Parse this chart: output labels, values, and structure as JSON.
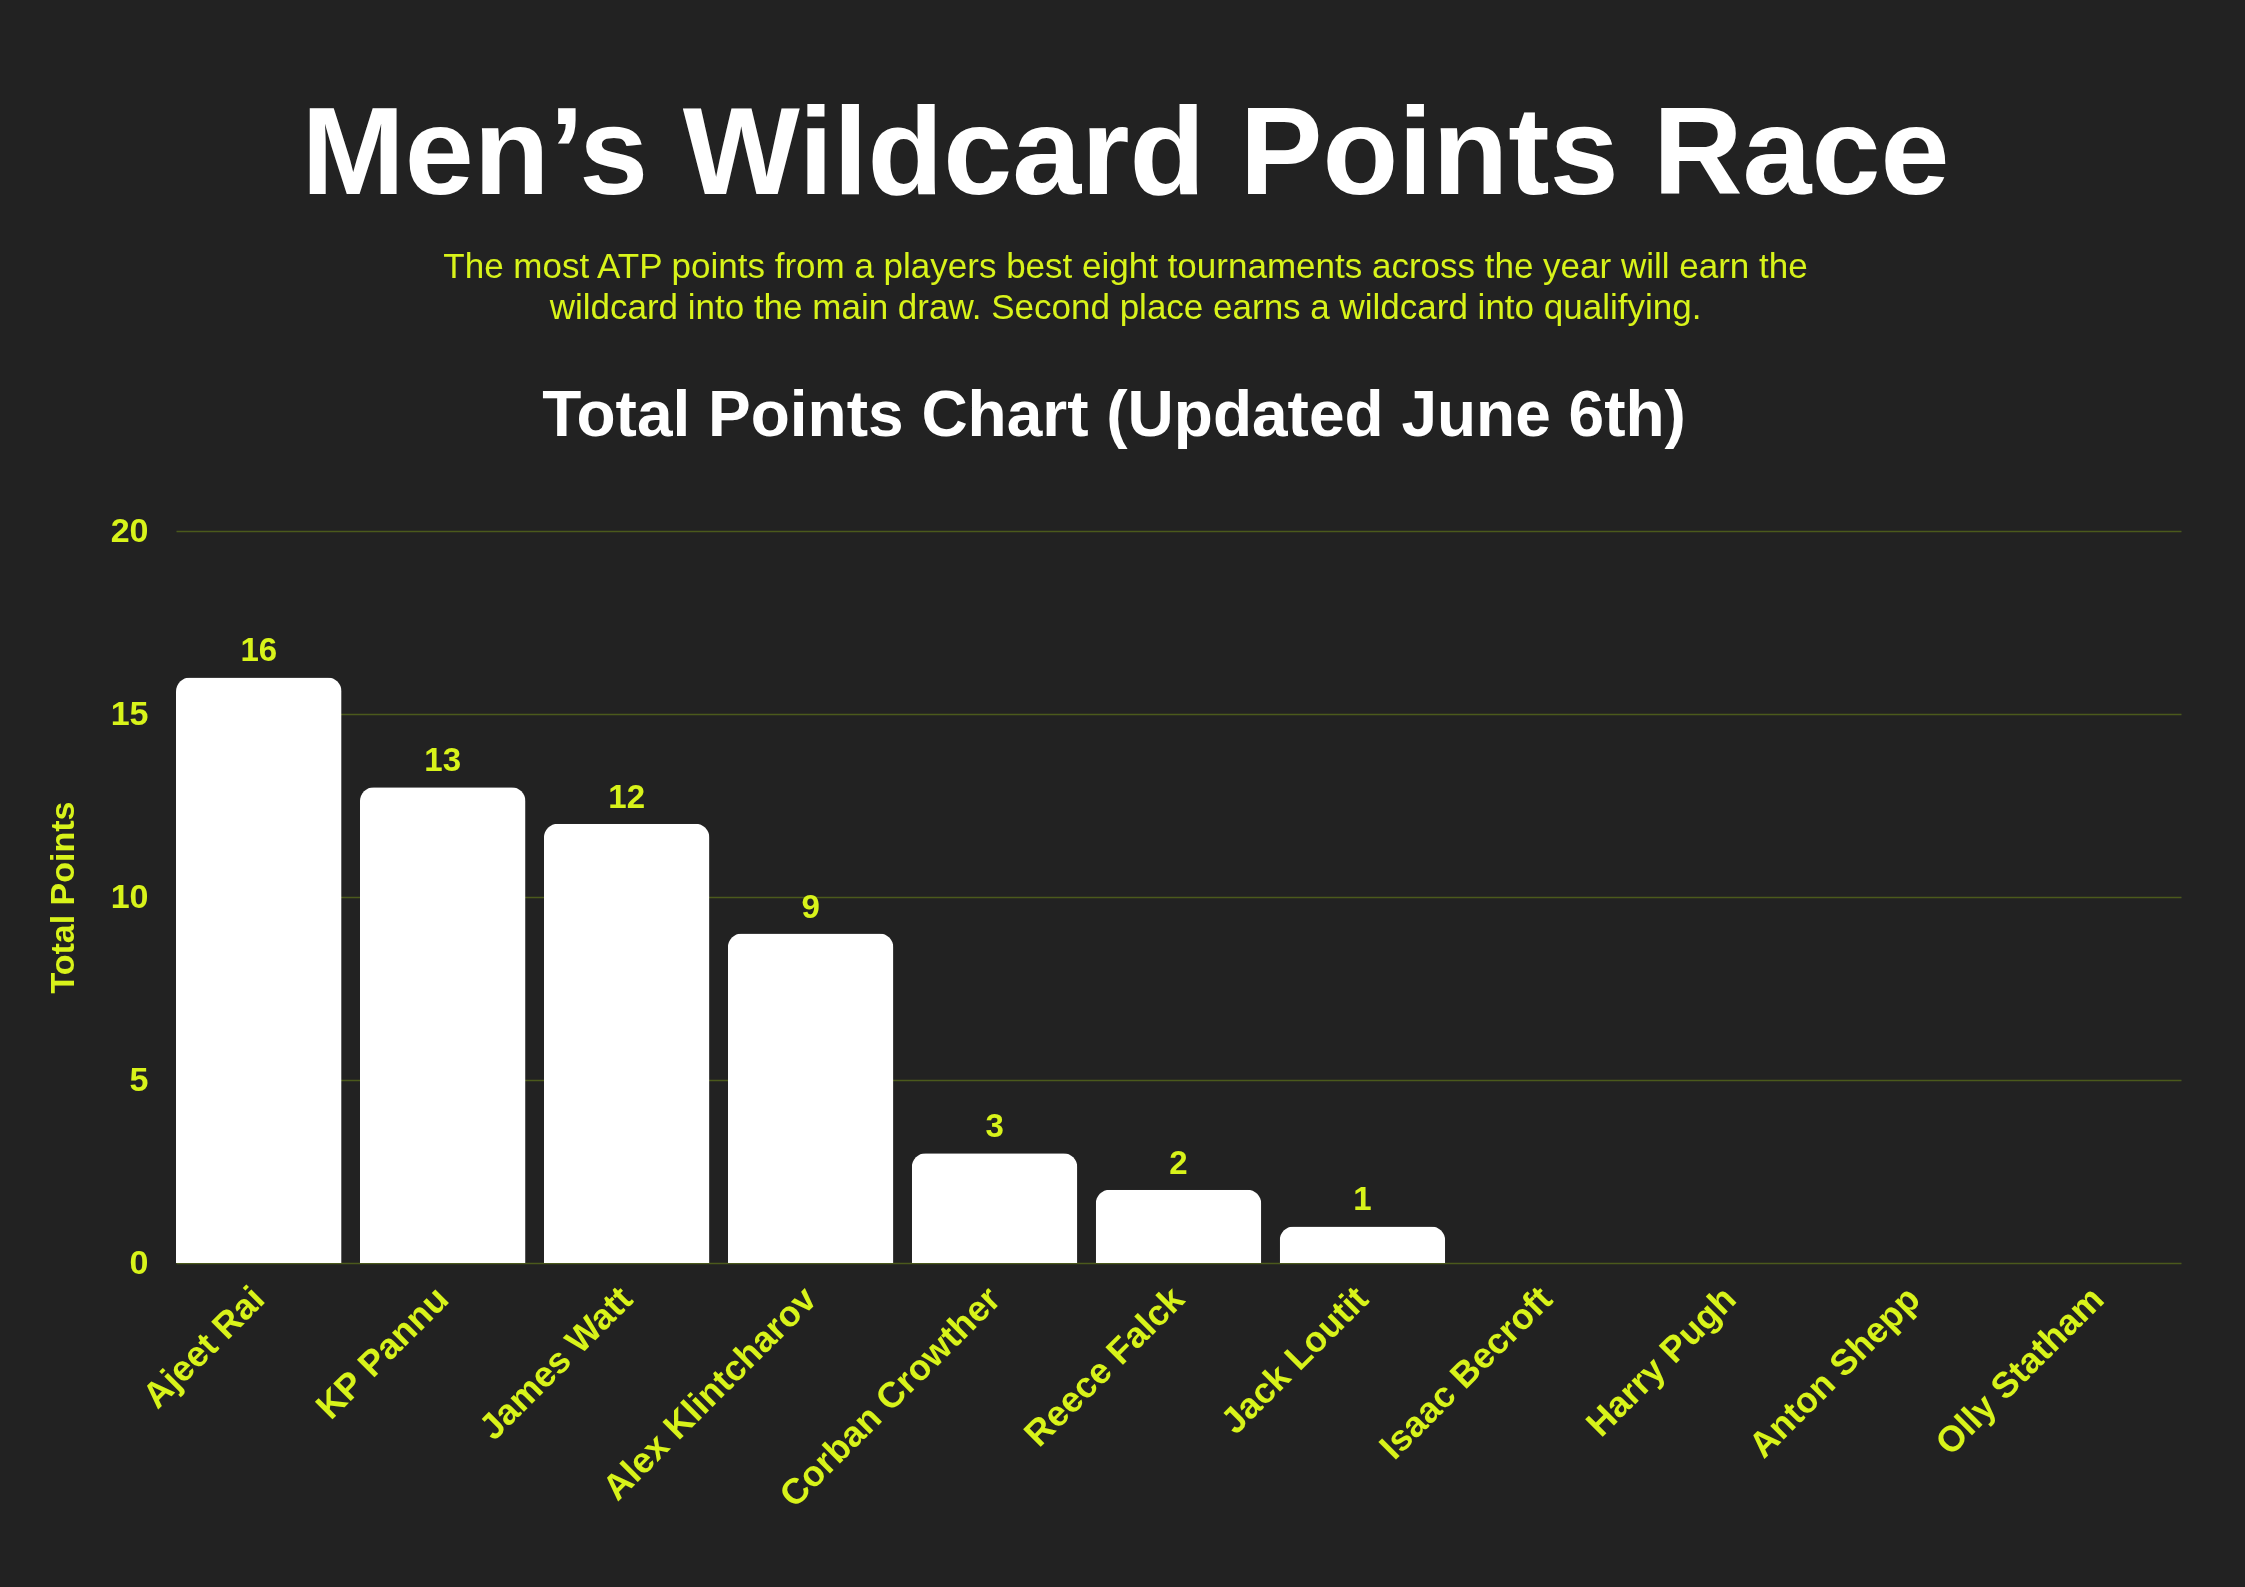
{
  "chart_data": {
    "type": "bar",
    "title": "Men’s Wildcard Points Race",
    "subtitle": "The most ATP points from a players best eight tournaments across the year will earn the wildcard into the main draw. Second place earns a wildcard into qualifying.",
    "annotations": [
      "Total Points Chart (Updated June 6th)"
    ],
    "ylabel": "Total Points",
    "categories": [
      "Ajeet Rai",
      "KP Pannu",
      "James Watt",
      "Alex Klintcharov",
      "Corban Crowther",
      "Reece Falck",
      "Jack Loutit",
      "Isaac Becroft",
      "Harry Pugh",
      "Anton Shepp",
      "Olly Statham"
    ],
    "values": [
      16,
      13,
      12,
      9,
      3,
      2,
      1,
      0,
      0,
      0,
      0
    ],
    "value_labels": [
      "16",
      "13",
      "12",
      "9",
      "3",
      "2",
      "1",
      null,
      null,
      null,
      null
    ],
    "color": "#ffffff",
    "ylim": [
      0,
      20
    ],
    "yticks": [
      0,
      5,
      10,
      15,
      20
    ],
    "grid": "y"
  }
}
